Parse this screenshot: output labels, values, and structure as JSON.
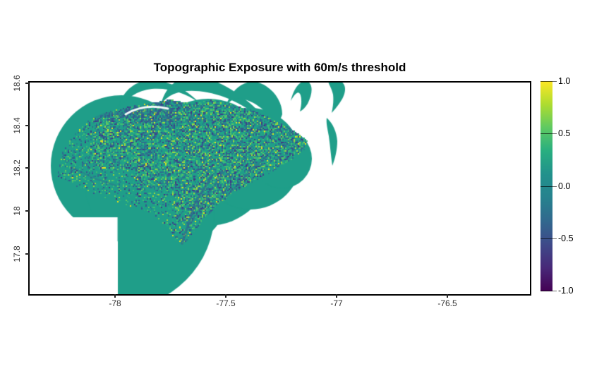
{
  "figure": {
    "title": "Topographic Exposure with 60m/s threshold"
  },
  "chart_data": {
    "type": "heatmap",
    "title": "Topographic Exposure with 60m/s threshold",
    "description": "R raster plot of topographic exposure over western Jamaica; overlapping circular radar-like swaths of uniform value ~0.15 (teal) with noisy viridis-textured terrain over the island interior; fan-blade shaped swath arcs at the top edge and an L-shaped data notch at lower left.",
    "x_axis": {
      "label": "",
      "tick_labels": [
        "-78",
        "-77.5",
        "-77",
        "-76.5"
      ],
      "tick_values": [
        -78,
        -77.5,
        -77,
        -76.5
      ],
      "range": [
        -78.39,
        -76.13
      ]
    },
    "y_axis": {
      "label": "",
      "tick_labels": [
        "18.6",
        "18.4",
        "18.2",
        "18",
        "17.8"
      ],
      "tick_values": [
        18.6,
        18.4,
        18.2,
        18.0,
        17.8
      ],
      "range": [
        17.61,
        18.6
      ]
    },
    "colorbar": {
      "min": -1.0,
      "max": 1.0,
      "tick_labels": [
        "1.0",
        "0.5",
        "0.0",
        "-0.5",
        "-1.0"
      ],
      "tick_values": [
        1.0,
        0.5,
        0.0,
        -0.5,
        -1.0
      ],
      "palette_name": "viridis",
      "palette": [
        "#440154",
        "#482878",
        "#3e4989",
        "#31688e",
        "#26828e",
        "#21918c",
        "#28ae80",
        "#5ec962",
        "#addc30",
        "#fde725"
      ],
      "position": "right"
    },
    "raster": {
      "base_value": 0.15,
      "base_color": "#1f9e89",
      "noise_palette": [
        {
          "c": "#1f9e89",
          "w": 34
        },
        {
          "c": "#23a884",
          "w": 10
        },
        {
          "c": "#3dbc74",
          "w": 9
        },
        {
          "c": "#5ec962",
          "w": 6
        },
        {
          "c": "#9bd93c",
          "w": 3.5
        },
        {
          "c": "#e8e419",
          "w": 1.2
        },
        {
          "c": "#2e6f8e",
          "w": 13
        },
        {
          "c": "#35588c",
          "w": 7
        },
        {
          "c": "#3b3f87",
          "w": 3.5
        },
        {
          "c": "#46327e",
          "w": 1.3
        },
        {
          "c": "#26828e",
          "w": 4
        }
      ],
      "streak_color": "#31688e",
      "background": "#ffffff"
    },
    "grid": false,
    "legend_position": "right colorbar"
  }
}
